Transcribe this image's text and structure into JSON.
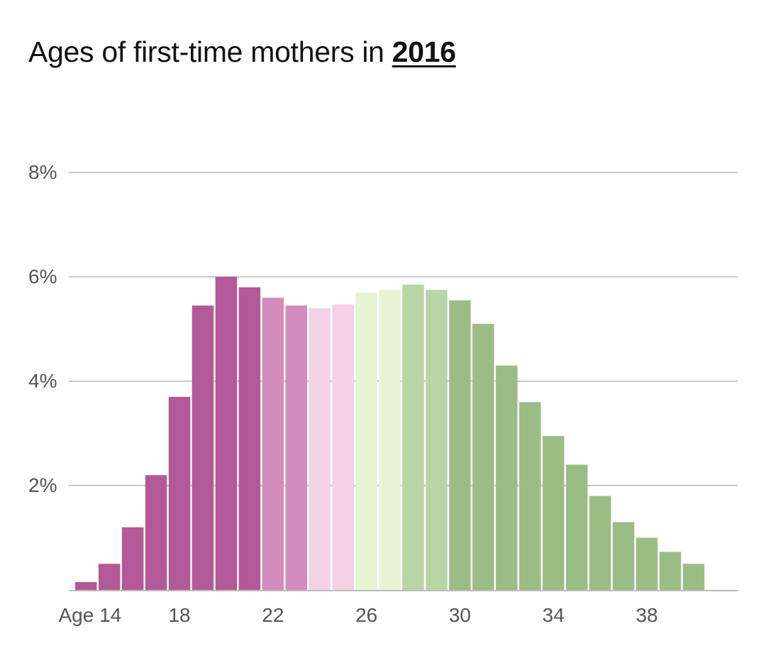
{
  "title": {
    "text": "Ages of first-time mothers in",
    "year": "2016"
  },
  "chart_data": {
    "type": "bar",
    "title": "Ages of first-time mothers in 2016",
    "xlabel": "",
    "ylabel": "",
    "ylim": [
      0,
      8
    ],
    "grid": true,
    "yticks": [
      {
        "value": 2,
        "label": "2%"
      },
      {
        "value": 4,
        "label": "4%"
      },
      {
        "value": 6,
        "label": "6%"
      },
      {
        "value": 8,
        "label": "8%"
      }
    ],
    "xticks": [
      {
        "age": 14,
        "label": "Age 14"
      },
      {
        "age": 18,
        "label": "18"
      },
      {
        "age": 22,
        "label": "22"
      },
      {
        "age": 26,
        "label": "26"
      },
      {
        "age": 30,
        "label": "30"
      },
      {
        "age": 34,
        "label": "34"
      },
      {
        "age": 38,
        "label": "38"
      }
    ],
    "categories": [
      14,
      15,
      16,
      17,
      18,
      19,
      20,
      21,
      22,
      23,
      24,
      25,
      26,
      27,
      28,
      29,
      30,
      31,
      32,
      33,
      34,
      35,
      36,
      37,
      38,
      39,
      40
    ],
    "values": [
      0.15,
      0.5,
      1.2,
      2.2,
      3.7,
      5.45,
      6.0,
      5.8,
      5.6,
      5.45,
      5.4,
      5.47,
      5.7,
      5.75,
      5.85,
      5.75,
      5.55,
      5.1,
      4.3,
      3.6,
      2.95,
      2.4,
      1.8,
      1.3,
      1.0,
      0.73,
      0.5
    ],
    "colors": [
      "#b35997",
      "#b35997",
      "#b35997",
      "#b35997",
      "#b35997",
      "#b35997",
      "#b35997",
      "#b35997",
      "#d28cbd",
      "#d28cbd",
      "#f4d1e7",
      "#f4d1e7",
      "#e5f5d4",
      "#e5f5d4",
      "#b9d5a5",
      "#b9d5a5",
      "#9bbd85",
      "#9bbd85",
      "#9bbd85",
      "#9bbd85",
      "#9bbd85",
      "#9bbd85",
      "#9bbd85",
      "#9bbd85",
      "#9bbd85",
      "#9bbd85",
      "#9bbd85"
    ],
    "gridline_color": "#c8c8c8",
    "baseline_color": "#bbbbbb"
  }
}
